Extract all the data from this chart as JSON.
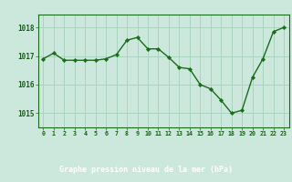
{
  "x": [
    0,
    1,
    2,
    3,
    4,
    5,
    6,
    7,
    8,
    9,
    10,
    11,
    12,
    13,
    14,
    15,
    16,
    17,
    18,
    19,
    20,
    21,
    22,
    23
  ],
  "y": [
    1016.9,
    1017.1,
    1016.85,
    1016.85,
    1016.85,
    1016.85,
    1016.9,
    1017.05,
    1017.55,
    1017.65,
    1017.25,
    1017.25,
    1016.95,
    1016.6,
    1016.55,
    1016.0,
    1015.85,
    1015.45,
    1015.0,
    1015.1,
    1016.25,
    1016.9,
    1017.85,
    1018.0
  ],
  "line_color": "#1a6b1a",
  "marker_color": "#1a6b1a",
  "bg_color": "#cce8dc",
  "grid_color": "#aad4c0",
  "bottom_bar_color": "#3a7a3a",
  "axis_label_color": "#ffffff",
  "tick_label_color": "#1a5c1a",
  "xlabel": "Graphe pression niveau de la mer (hPa)",
  "ylim_min": 1014.5,
  "ylim_max": 1018.45,
  "yticks": [
    1015,
    1016,
    1017,
    1018
  ],
  "xticks": [
    0,
    1,
    2,
    3,
    4,
    5,
    6,
    7,
    8,
    9,
    10,
    11,
    12,
    13,
    14,
    15,
    16,
    17,
    18,
    19,
    20,
    21,
    22,
    23
  ],
  "figw": 3.2,
  "figh": 2.0,
  "dpi": 100
}
